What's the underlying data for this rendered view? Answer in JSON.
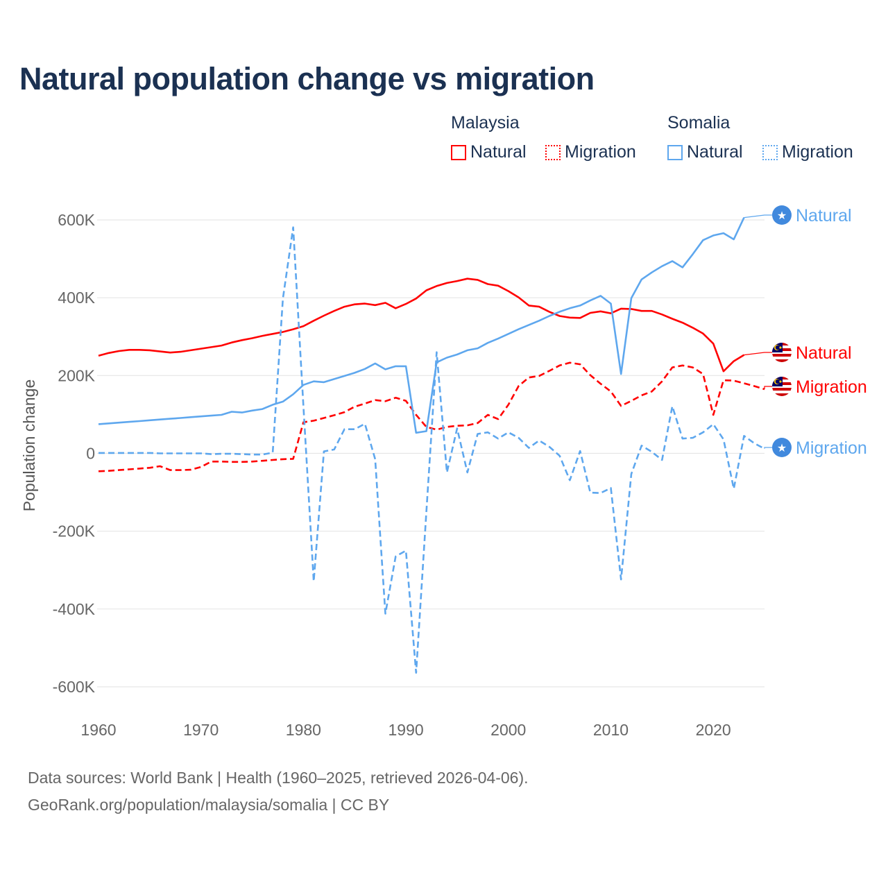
{
  "chart_data": {
    "type": "line",
    "title": "Natural population change vs migration",
    "xlabel": "",
    "ylabel": "Population change",
    "xlim": [
      1960,
      2025
    ],
    "ylim": [
      -600000,
      600000
    ],
    "x_ticks": [
      "1960",
      "1970",
      "1980",
      "1990",
      "2000",
      "2010",
      "2020"
    ],
    "y_ticks": [
      {
        "value": 600000,
        "label": "600K"
      },
      {
        "value": 400000,
        "label": "400K"
      },
      {
        "value": 200000,
        "label": "200K"
      },
      {
        "value": 0,
        "label": "0"
      },
      {
        "value": -200000,
        "label": "-200K"
      },
      {
        "value": -400000,
        "label": "-400K"
      },
      {
        "value": -600000,
        "label": "-600K"
      }
    ],
    "grid": true,
    "legend_placement": "top-right",
    "legend_groups": [
      {
        "country": "Malaysia",
        "items": [
          "Natural",
          "Migration"
        ]
      },
      {
        "country": "Somalia",
        "items": [
          "Natural",
          "Migration"
        ]
      }
    ],
    "x_start": 1960,
    "series": [
      {
        "name": "Malaysia Natural",
        "country": "Malaysia",
        "kind": "Natural",
        "color": "#ff0000",
        "dashed": false,
        "end_label": "Natural",
        "flag": "malaysia-flag",
        "values": [
          251000,
          258000,
          263000,
          266000,
          266000,
          265000,
          262000,
          259000,
          261000,
          265000,
          269000,
          273000,
          277000,
          285000,
          291000,
          296000,
          302000,
          307000,
          312000,
          319000,
          327000,
          341000,
          354000,
          366000,
          377000,
          383000,
          385000,
          381000,
          387000,
          373000,
          384000,
          398000,
          419000,
          430000,
          438000,
          443000,
          449000,
          446000,
          435000,
          431000,
          417000,
          401000,
          380000,
          377000,
          364000,
          353000,
          349000,
          348000,
          361000,
          365000,
          360000,
          372000,
          371000,
          366000,
          366000,
          357000,
          346000,
          336000,
          323000,
          308000,
          282000,
          211000,
          237000,
          253000,
          null,
          null
        ]
      },
      {
        "name": "Malaysia Migration",
        "country": "Malaysia",
        "kind": "Migration",
        "color": "#ff0000",
        "dashed": true,
        "end_label": "Migration",
        "flag": "malaysia-flag",
        "values": [
          -46000,
          -45000,
          -43000,
          -41000,
          -39000,
          -37000,
          -33000,
          -43000,
          -43000,
          -42000,
          -35000,
          -21000,
          -21000,
          -22000,
          -22000,
          -21000,
          -19000,
          -17000,
          -15000,
          -14000,
          80000,
          84000,
          91000,
          98000,
          106000,
          120000,
          128000,
          137000,
          134000,
          143000,
          135000,
          99000,
          68000,
          61000,
          68000,
          71000,
          72000,
          78000,
          99000,
          88000,
          125000,
          173000,
          195000,
          199000,
          212000,
          226000,
          233000,
          229000,
          201000,
          179000,
          159000,
          122000,
          135000,
          149000,
          159000,
          185000,
          221000,
          226000,
          221000,
          204000,
          99000,
          188000,
          187000,
          180000,
          173000,
          165000
        ]
      },
      {
        "name": "Somalia Natural",
        "country": "Somalia",
        "kind": "Natural",
        "color": "#5ea7ee",
        "dashed": false,
        "end_label": "Natural",
        "flag": "somalia-flag",
        "values": [
          75000,
          77000,
          79000,
          81000,
          83000,
          85000,
          87000,
          89000,
          91000,
          93000,
          95000,
          97000,
          99000,
          107000,
          105000,
          110000,
          114000,
          125000,
          133000,
          152000,
          176000,
          185000,
          183000,
          191000,
          199000,
          207000,
          217000,
          231000,
          216000,
          224000,
          224000,
          53000,
          57000,
          234000,
          246000,
          254000,
          265000,
          270000,
          284000,
          295000,
          307000,
          319000,
          330000,
          341000,
          353000,
          364000,
          373000,
          380000,
          393000,
          405000,
          385000,
          204000,
          399000,
          447000,
          465000,
          481000,
          494000,
          478000,
          512000,
          548000,
          560000,
          566000,
          550000,
          606000,
          null,
          null
        ]
      },
      {
        "name": "Somalia Migration",
        "country": "Somalia",
        "kind": "Migration",
        "color": "#5ea7ee",
        "dashed": true,
        "end_label": "Migration",
        "flag": "somalia-flag",
        "values": [
          1000,
          1000,
          1000,
          1000,
          1000,
          1000,
          0,
          0,
          0,
          0,
          0,
          -2000,
          -1000,
          -1000,
          -2000,
          -3000,
          -3000,
          2000,
          398000,
          581000,
          120000,
          -329000,
          5000,
          10000,
          62000,
          62000,
          76000,
          -15000,
          -412000,
          -265000,
          -250000,
          -564000,
          -150000,
          260000,
          -49000,
          64000,
          -49000,
          50000,
          54000,
          38000,
          54000,
          40000,
          14000,
          33000,
          17000,
          -6000,
          -69000,
          6000,
          -101000,
          -102000,
          -89000,
          -324000,
          -53000,
          20000,
          4000,
          -17000,
          121000,
          38000,
          40000,
          54000,
          75000,
          36000,
          -91000,
          45000,
          26000,
          12000
        ]
      }
    ]
  },
  "legend": {
    "malaysia": "Malaysia",
    "somalia": "Somalia",
    "natural": "Natural",
    "migration": "Migration"
  },
  "footer": {
    "line1": "Data sources: World Bank | Health (1960–2025, retrieved 2026-04-06).",
    "line2": "GeoRank.org/population/malaysia/somalia | CC BY"
  }
}
